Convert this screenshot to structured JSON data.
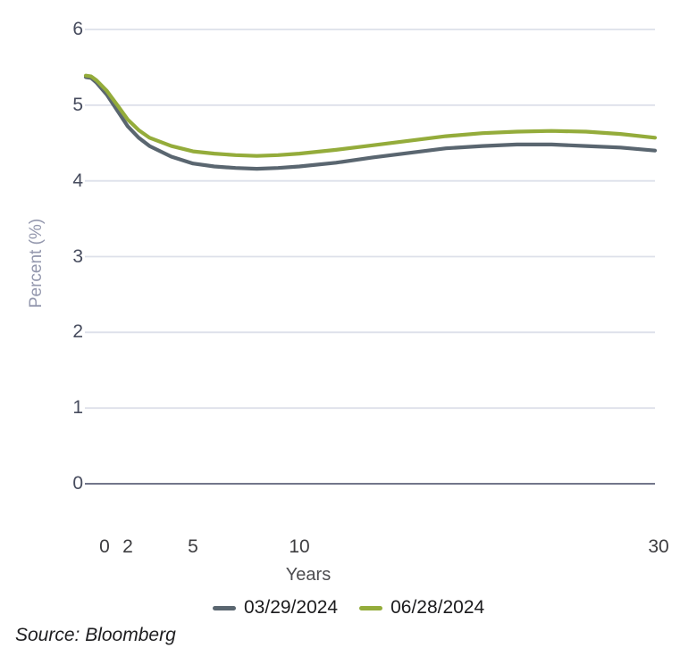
{
  "chart_data": {
    "type": "line",
    "title": "",
    "xlabel": "Years",
    "ylabel": "Percent (%)",
    "source": "Source: Bloomberg",
    "x_years": [
      0,
      0.25,
      0.5,
      1,
      1.5,
      2,
      2.5,
      3,
      4,
      5,
      6,
      7,
      8,
      9,
      10,
      12,
      14,
      16,
      18,
      20,
      22,
      24,
      26,
      28,
      30
    ],
    "series": [
      {
        "name": "03/29/2024",
        "color": "#5a6670",
        "values": [
          5.37,
          5.36,
          5.3,
          5.14,
          4.93,
          4.72,
          4.57,
          4.46,
          4.32,
          4.23,
          4.19,
          4.17,
          4.16,
          4.17,
          4.19,
          4.24,
          4.31,
          4.37,
          4.43,
          4.46,
          4.48,
          4.48,
          4.46,
          4.44,
          4.4
        ]
      },
      {
        "name": "06/28/2024",
        "color": "#94ac3b",
        "values": [
          5.39,
          5.38,
          5.33,
          5.19,
          5.0,
          4.81,
          4.67,
          4.57,
          4.46,
          4.39,
          4.36,
          4.34,
          4.33,
          4.34,
          4.36,
          4.41,
          4.47,
          4.53,
          4.59,
          4.63,
          4.65,
          4.66,
          4.65,
          4.62,
          4.57
        ]
      }
    ],
    "ylim": [
      0,
      6
    ],
    "y_ticks": [
      "6",
      "5",
      "4",
      "3",
      "2",
      "1",
      "0"
    ],
    "x_tick_labels": [
      "0",
      "2",
      "5",
      "10",
      "30"
    ],
    "grid": "horizontal light gridlines, darker zero baseline",
    "legend_position": "bottom-center",
    "style": {
      "grid_color": "#dde0ea",
      "zero_line_color": "#5e637a",
      "background": "#ffffff"
    }
  }
}
